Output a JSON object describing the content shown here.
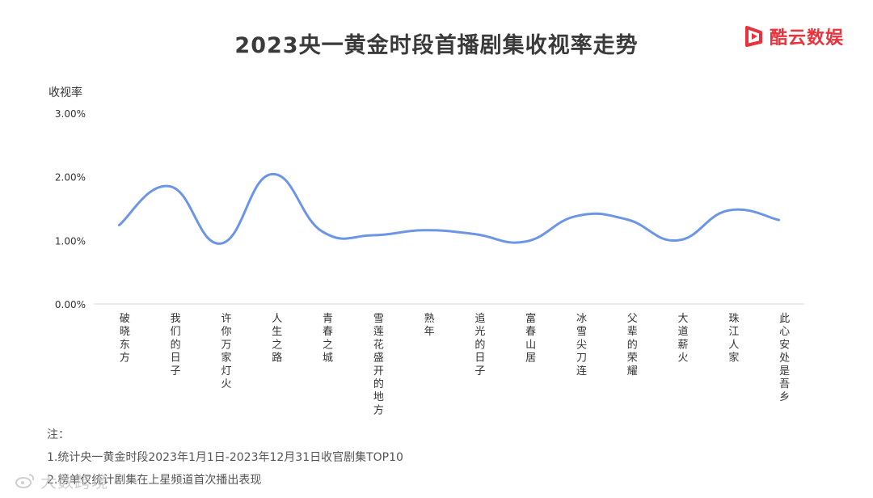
{
  "header": {
    "title": "2023央一黄金时段首播剧集收视率走势",
    "brand_name": "酷云数娱",
    "brand_icon": "play-logo-icon",
    "brand_color": "#e8323c"
  },
  "chart_data": {
    "type": "line",
    "title": "2023央一黄金时段首播剧集收视率走势",
    "ylabel": "收视率",
    "xlabel": "",
    "ylim": [
      0,
      3
    ],
    "y_ticks": [
      "0.00%",
      "1.00%",
      "2.00%",
      "3.00%"
    ],
    "y_tick_values": [
      0,
      1,
      2,
      3
    ],
    "grid": false,
    "legend": "none",
    "line_color": "#6d95e6",
    "smooth": true,
    "categories": [
      "破晓东方",
      "我们的日子",
      "许你万家灯火",
      "人生之路",
      "青春之城",
      "雪莲花盛开的地方",
      "熟年",
      "追光的日子",
      "富春山居",
      "冰雪尖刀连",
      "父辈的荣耀",
      "大道薪火",
      "珠江人家",
      "此心安处是吾乡"
    ],
    "series": [
      {
        "values": [
          1.24,
          1.85,
          0.95,
          2.04,
          1.14,
          1.08,
          1.16,
          1.1,
          0.98,
          1.38,
          1.33,
          1.0,
          1.47,
          1.32
        ]
      }
    ]
  },
  "notes": {
    "heading": "注：",
    "line1": "1.统计央一黄金时段2023年1月1日-2023年12月31日收官剧集TOP10",
    "line2": "2.榜单仅统计剧集在上星频道首次播出表现"
  },
  "watermark": {
    "text": "大数跨境",
    "icon": "weibo-icon"
  }
}
